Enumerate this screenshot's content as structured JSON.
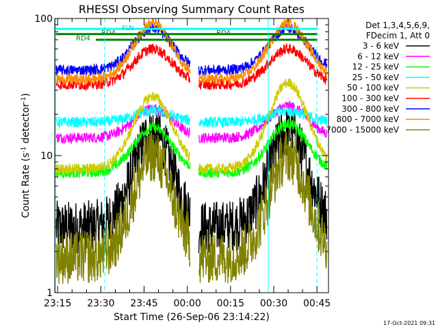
{
  "chart_data": {
    "type": "line",
    "title": "RHESSI Observing Summary Count Rates",
    "xlabel": "Start Time (26-Sep-06 23:14:22)",
    "ylabel_main": "Count Rate (s",
    "ylabel_sup": "-1",
    "ylabel_mid": " detector",
    "ylabel_sup2": "-1",
    "ylabel_end": ")",
    "yscale": "log",
    "ylim": [
      1,
      100
    ],
    "xlim_minutes": [
      -1,
      94
    ],
    "x_tick_labels": [
      "23:15",
      "23:30",
      "23:45",
      "00:00",
      "00:15",
      "00:30",
      "00:45"
    ],
    "x_tick_minutes": [
      0,
      15,
      30,
      45,
      60,
      75,
      90
    ],
    "y_tick_labels": [
      "1",
      "10",
      "100"
    ],
    "y_tick_values": [
      1,
      10,
      100
    ],
    "legend_header": [
      "Det 1,3,4,5,6,9,",
      "FDecim 1, Att 0"
    ],
    "legend_placement": "right",
    "footer_date": "17-Oct-2021 09:31",
    "annotations": [
      "RD4",
      "RD4",
      "RD4",
      "FL",
      "N"
    ],
    "flag_colors": {
      "saa_or_night": "#00ffff",
      "decim": "#ff0000",
      "attenuator": "#008000"
    },
    "series": [
      {
        "name": "3 - 6 keV",
        "color": "#000000",
        "base": 3.0,
        "peaks": [
          15,
          15
        ]
      },
      {
        "name": "6 - 12 keV",
        "color": "#ff00ff",
        "base": 13.5,
        "peaks": [
          22,
          23
        ]
      },
      {
        "name": "12 - 25 keV",
        "color": "#00ff00",
        "base": 7.5,
        "peaks": [
          16,
          17
        ]
      },
      {
        "name": "25 - 50 keV",
        "color": "#00ffff",
        "base": 17.5,
        "peaks": [
          21,
          21
        ]
      },
      {
        "name": "50 - 100 keV",
        "color": "#cccc00",
        "base": 8.0,
        "peaks": [
          27,
          34
        ]
      },
      {
        "name": "100 - 300 keV",
        "color": "#ff0000",
        "base": 33.0,
        "peaks": [
          60,
          60
        ]
      },
      {
        "name": "300 - 800 keV",
        "color": "#0000ff",
        "base": 42.0,
        "peaks": [
          85,
          85
        ]
      },
      {
        "name": "800 - 7000 keV",
        "color": "#ff8c00",
        "base": 36.0,
        "peaks": [
          92,
          92
        ]
      },
      {
        "name": "7000 - 15000 keV",
        "color": "#808000",
        "base": 1.8,
        "peaks": [
          10,
          10
        ]
      }
    ]
  }
}
